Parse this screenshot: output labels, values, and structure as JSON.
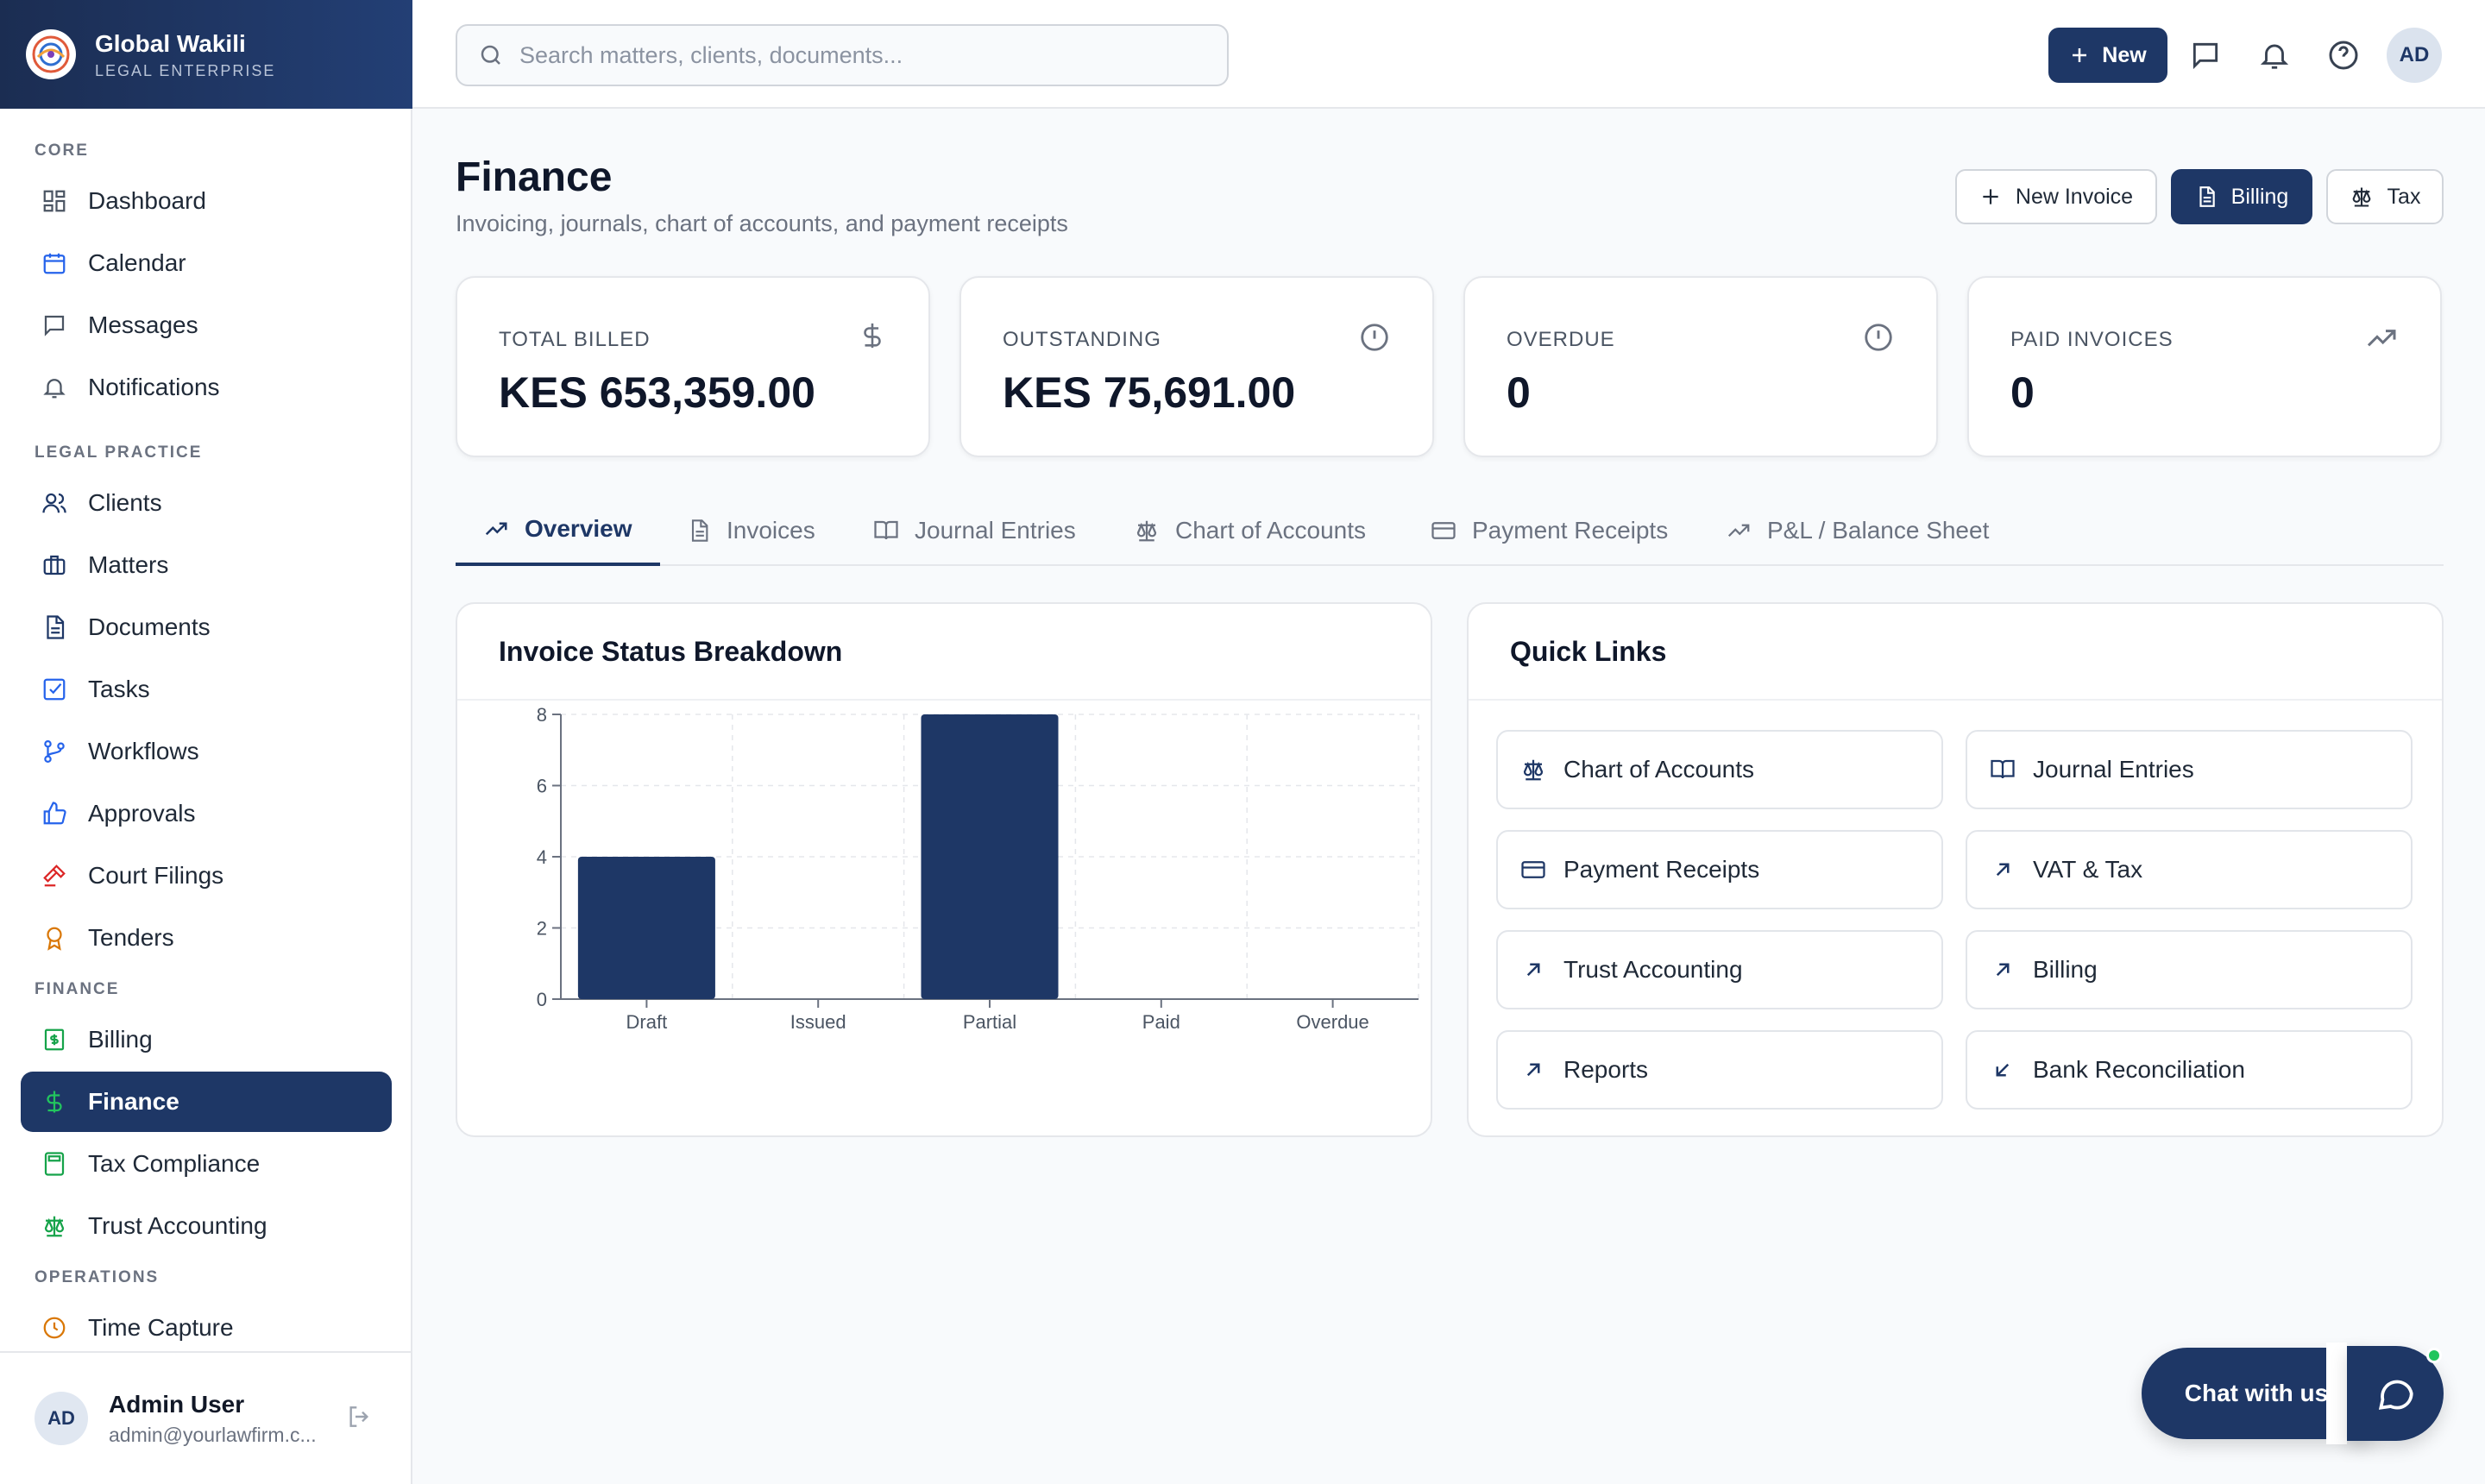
{
  "brand": {
    "name": "Global Wakili",
    "subtitle": "LEGAL ENTERPRISE"
  },
  "sidebar": {
    "sections": [
      {
        "label": "CORE",
        "items": [
          {
            "label": "Dashboard",
            "icon": "dashboard-icon"
          },
          {
            "label": "Calendar",
            "icon": "calendar-icon"
          },
          {
            "label": "Messages",
            "icon": "messages-icon"
          },
          {
            "label": "Notifications",
            "icon": "bell-icon"
          }
        ]
      },
      {
        "label": "LEGAL PRACTICE",
        "items": [
          {
            "label": "Clients",
            "icon": "users-icon"
          },
          {
            "label": "Matters",
            "icon": "briefcase-icon"
          },
          {
            "label": "Documents",
            "icon": "document-icon"
          },
          {
            "label": "Tasks",
            "icon": "checkbox-icon"
          },
          {
            "label": "Workflows",
            "icon": "branch-icon"
          },
          {
            "label": "Approvals",
            "icon": "thumbs-up-icon"
          },
          {
            "label": "Court Filings",
            "icon": "gavel-icon"
          },
          {
            "label": "Tenders",
            "icon": "award-icon"
          }
        ]
      },
      {
        "label": "FINANCE",
        "items": [
          {
            "label": "Billing",
            "icon": "receipt-icon"
          },
          {
            "label": "Finance",
            "icon": "dollar-icon",
            "active": true
          },
          {
            "label": "Tax Compliance",
            "icon": "calculator-icon"
          },
          {
            "label": "Trust Accounting",
            "icon": "scale-icon"
          }
        ]
      },
      {
        "label": "OPERATIONS",
        "items": [
          {
            "label": "Time Capture",
            "icon": "clock-icon"
          }
        ]
      }
    ]
  },
  "user": {
    "initials": "AD",
    "name": "Admin User",
    "email": "admin@yourlawfirm.c..."
  },
  "topbar": {
    "search_placeholder": "Search matters, clients, documents...",
    "new_label": "New",
    "avatar": "AD"
  },
  "page": {
    "title": "Finance",
    "subtitle": "Invoicing, journals, chart of accounts, and payment receipts"
  },
  "actions": {
    "new_invoice": "New Invoice",
    "billing": "Billing",
    "tax": "Tax"
  },
  "stats": [
    {
      "label": "TOTAL BILLED",
      "value": "KES 653,359.00",
      "icon": "dollar-icon"
    },
    {
      "label": "OUTSTANDING",
      "value": "KES 75,691.00",
      "icon": "alert-circle-icon"
    },
    {
      "label": "OVERDUE",
      "value": "0",
      "icon": "alert-circle-icon"
    },
    {
      "label": "PAID INVOICES",
      "value": "0",
      "icon": "trending-up-icon"
    }
  ],
  "tabs": [
    {
      "label": "Overview",
      "icon": "trending-up-icon",
      "active": true
    },
    {
      "label": "Invoices",
      "icon": "document-icon"
    },
    {
      "label": "Journal Entries",
      "icon": "book-icon"
    },
    {
      "label": "Chart of Accounts",
      "icon": "scale-icon"
    },
    {
      "label": "Payment Receipts",
      "icon": "card-icon"
    },
    {
      "label": "P&L / Balance Sheet",
      "icon": "trending-up-icon"
    }
  ],
  "chart_panel": {
    "title": "Invoice Status Breakdown"
  },
  "chart_data": {
    "type": "bar",
    "categories": [
      "Draft",
      "Issued",
      "Partial",
      "Paid",
      "Overdue"
    ],
    "values": [
      4,
      0,
      8,
      0,
      0
    ],
    "ylim": [
      0,
      8
    ],
    "yticks": [
      0,
      2,
      4,
      6,
      8
    ],
    "grid": true,
    "color": "#1e3766"
  },
  "quick_links": {
    "title": "Quick Links",
    "items": [
      {
        "label": "Chart of Accounts",
        "icon": "scale-icon"
      },
      {
        "label": "Journal Entries",
        "icon": "book-icon"
      },
      {
        "label": "Payment Receipts",
        "icon": "card-icon"
      },
      {
        "label": "VAT & Tax",
        "icon": "arrow-up-right-icon"
      },
      {
        "label": "Trust Accounting",
        "icon": "arrow-up-right-icon"
      },
      {
        "label": "Billing",
        "icon": "arrow-up-right-icon"
      },
      {
        "label": "Reports",
        "icon": "arrow-up-right-icon"
      },
      {
        "label": "Bank Reconciliation",
        "icon": "arrow-down-left-icon"
      }
    ]
  },
  "chat": {
    "label": "Chat with us"
  },
  "colors": {
    "primary": "#1e3766",
    "online": "#22c55e"
  }
}
